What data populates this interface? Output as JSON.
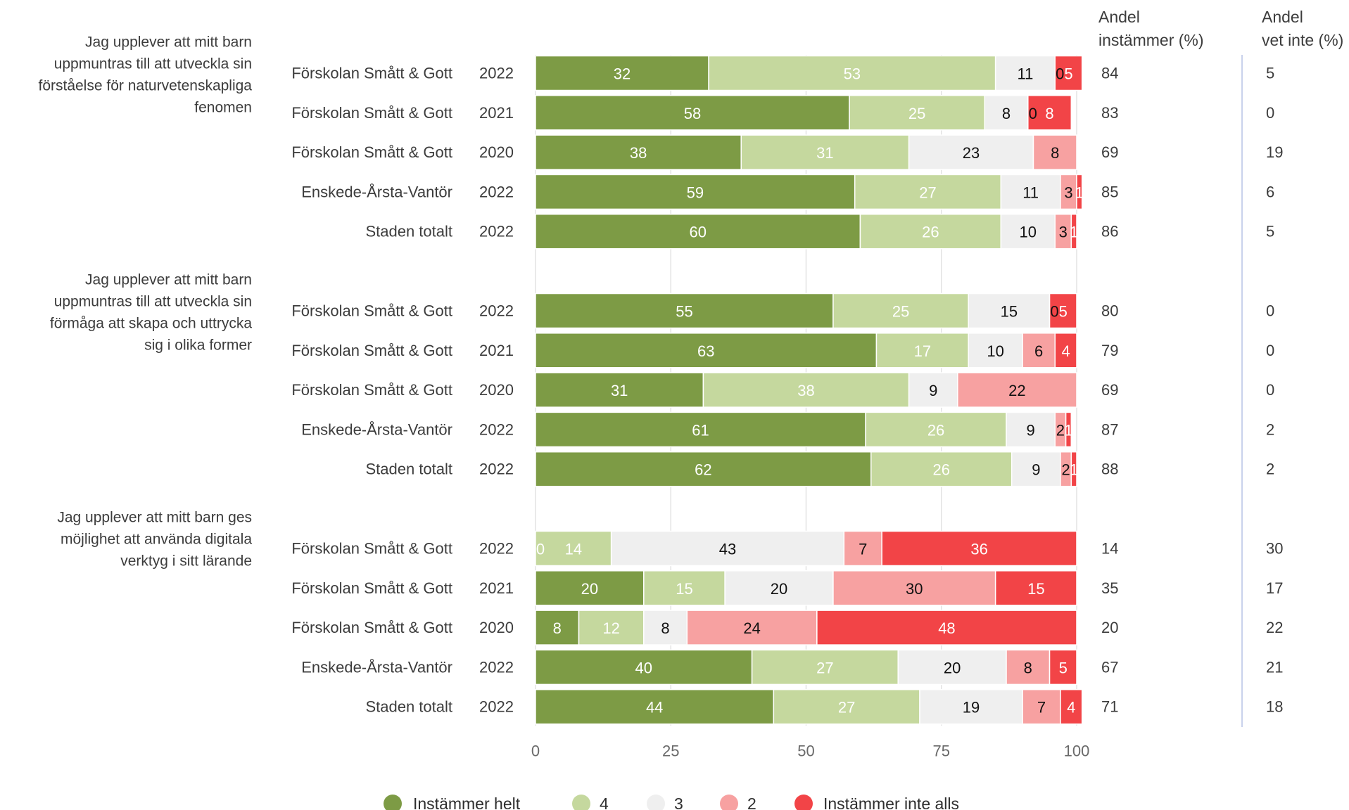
{
  "chart_data": {
    "type": "bar",
    "orientation": "horizontal",
    "stacked": true,
    "xlim": [
      0,
      100
    ],
    "xticks": [
      0,
      25,
      50,
      75,
      100
    ],
    "grid": true,
    "legend_position": "bottom",
    "series": [
      {
        "name": "Instämmer helt",
        "color": "#7d9b45"
      },
      {
        "name": "4",
        "color": "#c5d89e"
      },
      {
        "name": "3",
        "color": "#efefef"
      },
      {
        "name": "2",
        "color": "#f7a1a1"
      },
      {
        "name": "Instämmer inte alls",
        "color": "#f24447"
      }
    ],
    "extra_columns": [
      {
        "header_lines": [
          "Andel",
          "instämmer (%)"
        ]
      },
      {
        "header_lines": [
          "Andel",
          "vet inte (%)"
        ]
      }
    ],
    "groups": [
      {
        "question_lines": [
          "Jag upplever att mitt barn",
          "uppmuntras till att utveckla sin",
          "förståelse för naturvetenskapliga",
          "fenomen"
        ],
        "rows": [
          {
            "unit": "Förskolan Smått & Gott",
            "year": "2022",
            "values": [
              32,
              53,
              11,
              0,
              5
            ],
            "labels": [
              "32",
              "53",
              "11",
              "0",
              "5"
            ],
            "instammer": "84",
            "vet_inte": "5"
          },
          {
            "unit": "Förskolan Smått & Gott",
            "year": "2021",
            "values": [
              58,
              25,
              8,
              0,
              8
            ],
            "labels": [
              "58",
              "25",
              "8",
              "0",
              "8"
            ],
            "instammer": "83",
            "vet_inte": "0"
          },
          {
            "unit": "Förskolan Smått & Gott",
            "year": "2020",
            "values": [
              38,
              31,
              23,
              8,
              0
            ],
            "labels": [
              "38",
              "31",
              "23",
              "8",
              "0"
            ],
            "instammer": "69",
            "vet_inte": "19"
          },
          {
            "unit": "Enskede-Årsta-Vantör",
            "year": "2022",
            "values": [
              59,
              27,
              11,
              3,
              1
            ],
            "labels": [
              "59",
              "27",
              "11",
              "3",
              "1"
            ],
            "instammer": "85",
            "vet_inte": "6"
          },
          {
            "unit": "Staden totalt",
            "year": "2022",
            "values": [
              60,
              26,
              10,
              3,
              1
            ],
            "labels": [
              "60",
              "26",
              "10",
              "3",
              "1"
            ],
            "instammer": "86",
            "vet_inte": "5"
          }
        ]
      },
      {
        "question_lines": [
          "Jag upplever att mitt barn",
          "uppmuntras till att utveckla sin",
          "förmåga att skapa och uttrycka",
          "sig i olika former"
        ],
        "rows": [
          {
            "unit": "Förskolan Smått & Gott",
            "year": "2022",
            "values": [
              55,
              25,
              15,
              0,
              5
            ],
            "labels": [
              "55",
              "25",
              "15",
              "0",
              "5"
            ],
            "instammer": "80",
            "vet_inte": "0"
          },
          {
            "unit": "Förskolan Smått & Gott",
            "year": "2021",
            "values": [
              63,
              17,
              10,
              6,
              4
            ],
            "labels": [
              "63",
              "17",
              "10",
              "6",
              "4"
            ],
            "instammer": "79",
            "vet_inte": "0"
          },
          {
            "unit": "Förskolan Smått & Gott",
            "year": "2020",
            "values": [
              31,
              38,
              9,
              22,
              0
            ],
            "labels": [
              "31",
              "38",
              "9",
              "22",
              "0"
            ],
            "instammer": "69",
            "vet_inte": "0"
          },
          {
            "unit": "Enskede-Årsta-Vantör",
            "year": "2022",
            "values": [
              61,
              26,
              9,
              2,
              1
            ],
            "labels": [
              "61",
              "26",
              "9",
              "2",
              "1"
            ],
            "instammer": "87",
            "vet_inte": "2"
          },
          {
            "unit": "Staden totalt",
            "year": "2022",
            "values": [
              62,
              26,
              9,
              2,
              1
            ],
            "labels": [
              "62",
              "26",
              "9",
              "2",
              "1"
            ],
            "instammer": "88",
            "vet_inte": "2"
          }
        ]
      },
      {
        "question_lines": [
          "Jag upplever att mitt barn ges",
          "möjlighet att använda digitala",
          "verktyg i sitt lärande"
        ],
        "rows": [
          {
            "unit": "Förskolan Smått & Gott",
            "year": "2022",
            "values": [
              0,
              14,
              43,
              7,
              36
            ],
            "labels": [
              "0",
              "14",
              "43",
              "7",
              "36"
            ],
            "instammer": "14",
            "vet_inte": "30"
          },
          {
            "unit": "Förskolan Smått & Gott",
            "year": "2021",
            "values": [
              20,
              15,
              20,
              30,
              15
            ],
            "labels": [
              "20",
              "15",
              "20",
              "30",
              "15"
            ],
            "instammer": "35",
            "vet_inte": "17"
          },
          {
            "unit": "Förskolan Smått & Gott",
            "year": "2020",
            "values": [
              8,
              12,
              8,
              24,
              48
            ],
            "labels": [
              "8",
              "12",
              "8",
              "24",
              "48"
            ],
            "instammer": "20",
            "vet_inte": "22"
          },
          {
            "unit": "Enskede-Årsta-Vantör",
            "year": "2022",
            "values": [
              40,
              27,
              20,
              8,
              5
            ],
            "labels": [
              "40",
              "27",
              "20",
              "8",
              "5"
            ],
            "instammer": "67",
            "vet_inte": "21"
          },
          {
            "unit": "Staden totalt",
            "year": "2022",
            "values": [
              44,
              27,
              19,
              7,
              4
            ],
            "labels": [
              "44",
              "27",
              "19",
              "7",
              "4"
            ],
            "instammer": "71",
            "vet_inte": "18"
          }
        ]
      }
    ]
  }
}
